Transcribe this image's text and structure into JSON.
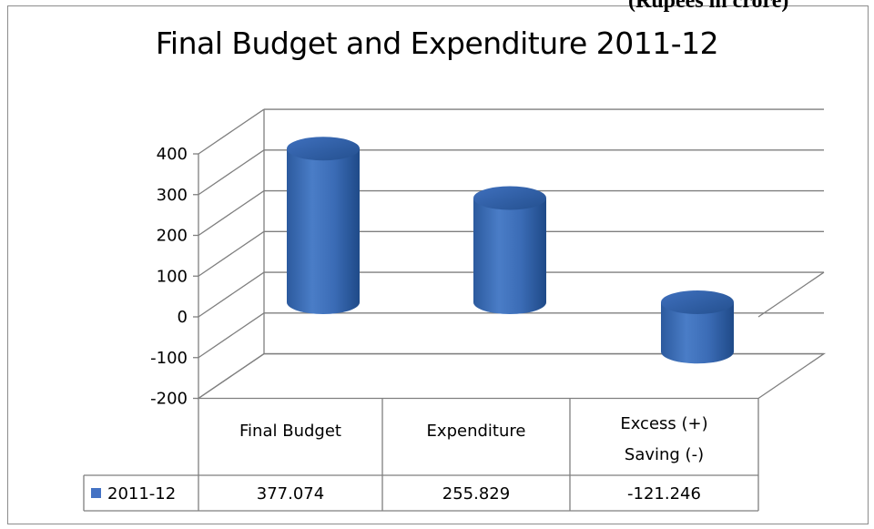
{
  "header": {
    "text": "(Rupees in crore)"
  },
  "chart_data": {
    "type": "bar",
    "title": "Final Budget and Expenditure 2011-12",
    "categories": [
      [
        "Final Budget"
      ],
      [
        "Expenditure"
      ],
      [
        "Excess (+)",
        "Saving (-)"
      ]
    ],
    "series": [
      {
        "name": "2011-12",
        "values": [
          377.074,
          255.829,
          -121.246
        ],
        "color": "#4472c4"
      }
    ],
    "value_labels": [
      "377.074",
      "255.829",
      "-121.246"
    ],
    "ylim": [
      -200,
      400
    ],
    "yticks": [
      "-200",
      "-100",
      "0",
      "100",
      "200",
      "300",
      "400"
    ],
    "grid": true,
    "legend": "data-table"
  }
}
